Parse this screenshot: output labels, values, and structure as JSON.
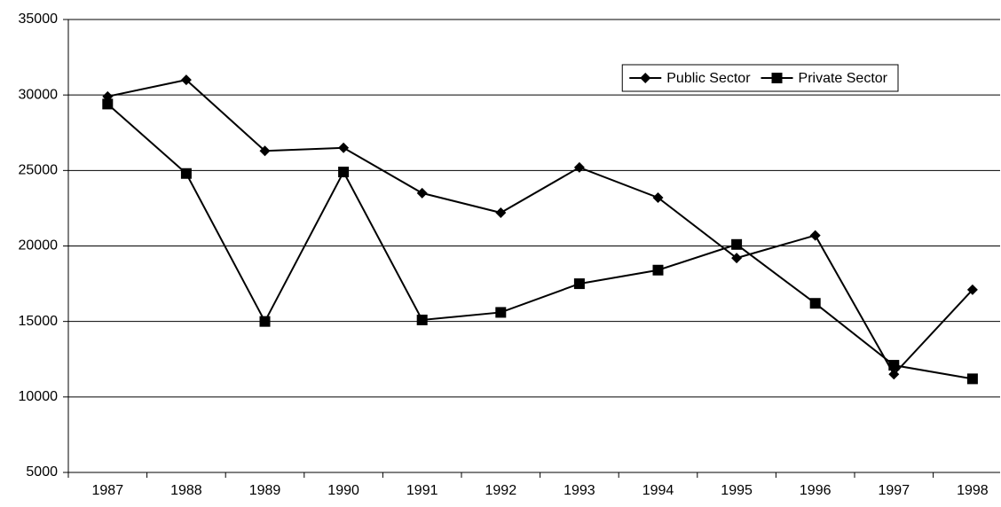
{
  "chart_data": {
    "type": "line",
    "categories": [
      "1987",
      "1988",
      "1989",
      "1990",
      "1991",
      "1992",
      "1993",
      "1994",
      "1995",
      "1996",
      "1997",
      "1998"
    ],
    "series": [
      {
        "name": "Public Sector",
        "color": "#000000",
        "marker": "diamond",
        "values": [
          29900,
          31000,
          26300,
          26500,
          23500,
          22200,
          25200,
          23200,
          19200,
          20700,
          11500,
          17100
        ]
      },
      {
        "name": "Private Sector",
        "color": "#000000",
        "marker": "square",
        "values": [
          29400,
          24800,
          15000,
          24900,
          15100,
          15600,
          17500,
          18400,
          20100,
          16200,
          12100,
          11200
        ]
      }
    ],
    "ylim": [
      5000,
      35000
    ],
    "yticks": [
      5000,
      10000,
      15000,
      20000,
      25000,
      30000,
      35000
    ],
    "grid": true,
    "legend": "top-right"
  }
}
